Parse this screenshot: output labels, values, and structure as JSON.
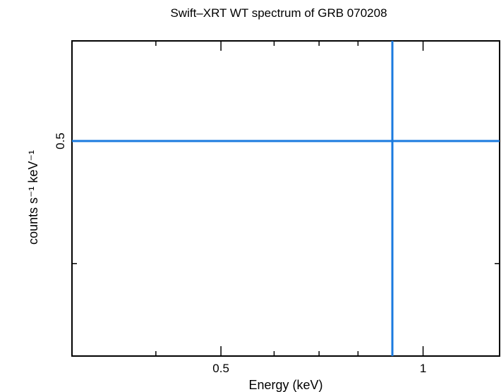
{
  "chart_data": {
    "type": "scatter",
    "title": "Swift–XRT WT spectrum of GRB 070208",
    "xlabel": "Energy (keV)",
    "ylabel": "counts s⁻¹ keV⁻¹",
    "xscale": "log",
    "yscale": "log",
    "xlim": [
      0.3,
      1.3
    ],
    "ylim": [
      0.338,
      0.6
    ],
    "x_ticks": [
      {
        "value": 0.5,
        "label": "0.5"
      },
      {
        "value": 1,
        "label": "1"
      }
    ],
    "y_ticks": [
      {
        "value": 0.5,
        "label": "0.5"
      }
    ],
    "grid": false,
    "series": [
      {
        "points": [
          {
            "x": 0.9,
            "xerr": [
              0.0,
              0.0
            ],
            "y": 0.5,
            "yerr": [
              0.162,
              0.1
            ]
          }
        ],
        "color": "#1a7adf"
      }
    ]
  }
}
